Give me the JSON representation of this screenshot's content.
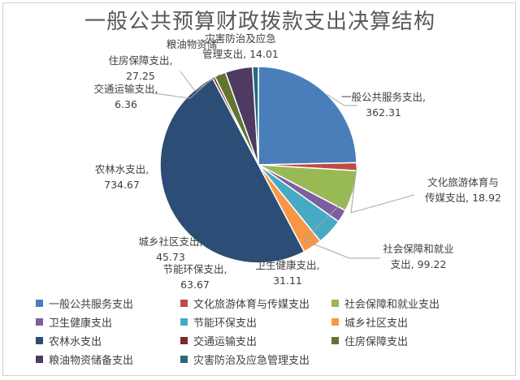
{
  "chart_data": {
    "type": "pie",
    "title": "一般公共预算财政拨款支出决算结构",
    "legend_position": "bottom",
    "slices": [
      {
        "name": "一般公共服务支出",
        "value": 362.31,
        "color": "#4a7ebb"
      },
      {
        "name": "文化旅游体育与传媒支出",
        "value": 18.92,
        "color": "#be4b48"
      },
      {
        "name": "社会保障和就业支出",
        "value": 99.22,
        "color": "#98b954"
      },
      {
        "name": "卫生健康支出",
        "value": 31.11,
        "color": "#7d5fa0"
      },
      {
        "name": "节能环保支出",
        "value": 63.67,
        "color": "#46aac5"
      },
      {
        "name": "城乡社区支出",
        "value": 45.73,
        "color": "#f79646"
      },
      {
        "name": "农林水支出",
        "value": 734.67,
        "color": "#2c4d75"
      },
      {
        "name": "交通运输支出",
        "value": 6.36,
        "color": "#772c2a"
      },
      {
        "name": "住房保障支出",
        "value": 27.25,
        "color": "#5f7530"
      },
      {
        "name": "粮油物资储备支出",
        "value": 66.0,
        "color": "#4d3b62"
      },
      {
        "name": "灾害防治及应急管理支出",
        "value": 14.01,
        "color": "#276a7c"
      }
    ],
    "data_labels": [
      {
        "name": "一般公共服务支出,",
        "value": "362.31"
      },
      {
        "name": "文化旅游体育与",
        "name2": "传媒支出,",
        "value": "18.92"
      },
      {
        "name": "社会保障和就业",
        "name2": "支出,",
        "value": "99.22"
      },
      {
        "name": "卫生健康支出,",
        "value": "31.11"
      },
      {
        "name": "节能环保支出,",
        "value": "63.67"
      },
      {
        "name": "城乡社区支出,",
        "value": "45.73"
      },
      {
        "name": "农林水支出,",
        "value": "734.67"
      },
      {
        "name": "交通运输支出,",
        "value": "6.36"
      },
      {
        "name": "住房保障支出,",
        "value": "27.25"
      },
      {
        "name": "粮油物资储",
        "value": ""
      },
      {
        "name": "灾害防治及应急",
        "name2": "管理支出,",
        "value": "14.01"
      }
    ]
  }
}
